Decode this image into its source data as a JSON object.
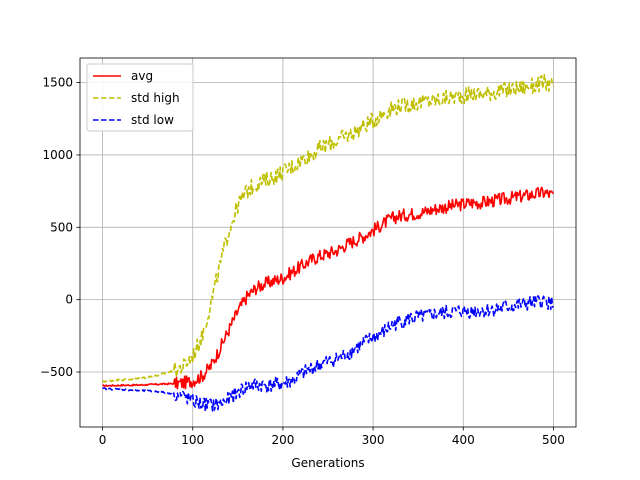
{
  "chart_data": {
    "type": "line",
    "title": "",
    "xlabel": "Generations",
    "ylabel": "",
    "xlim": [
      -25,
      525
    ],
    "ylim": [
      -880,
      1670
    ],
    "xticks": [
      0,
      100,
      200,
      300,
      400,
      500
    ],
    "yticks": [
      -500,
      0,
      500,
      1000,
      1500
    ],
    "ytick_labels": [
      "−500",
      "0",
      "500",
      "1000",
      "1500"
    ],
    "grid": true,
    "legend_position": "top-left",
    "noise": [
      [
        0,
        -1
      ],
      [
        1,
        -1
      ],
      [
        2,
        -1
      ],
      [
        3,
        0
      ],
      [
        4,
        0
      ],
      [
        5,
        1
      ],
      [
        6,
        1
      ],
      [
        7,
        1
      ]
    ],
    "series": [
      {
        "name": "avg",
        "color": "#ff0000",
        "dash": "solid",
        "x": [
          0,
          20,
          40,
          60,
          80,
          90,
          100,
          110,
          120,
          130,
          140,
          150,
          160,
          170,
          180,
          190,
          200,
          210,
          220,
          230,
          240,
          250,
          260,
          270,
          280,
          290,
          300,
          310,
          320,
          330,
          340,
          350,
          360,
          370,
          380,
          390,
          400,
          410,
          420,
          430,
          440,
          450,
          460,
          470,
          480,
          490,
          500
        ],
        "y": [
          -595,
          -592,
          -590,
          -585,
          -580,
          -575,
          -560,
          -530,
          -460,
          -340,
          -210,
          -80,
          20,
          80,
          110,
          130,
          150,
          190,
          230,
          270,
          300,
          320,
          340,
          380,
          410,
          440,
          480,
          520,
          560,
          580,
          590,
          600,
          610,
          630,
          640,
          650,
          660,
          670,
          670,
          680,
          690,
          700,
          710,
          720,
          730,
          740,
          720
        ],
        "amp": 45
      },
      {
        "name": "std high",
        "color": "#bfbf00",
        "dash": "dashed",
        "x": [
          0,
          20,
          40,
          60,
          80,
          90,
          100,
          110,
          120,
          130,
          140,
          150,
          160,
          170,
          180,
          190,
          200,
          210,
          220,
          230,
          240,
          250,
          260,
          270,
          280,
          290,
          300,
          310,
          320,
          330,
          340,
          350,
          360,
          370,
          380,
          390,
          400,
          410,
          420,
          430,
          440,
          450,
          460,
          470,
          480,
          490,
          500
        ],
        "y": [
          -565,
          -555,
          -545,
          -525,
          -490,
          -460,
          -390,
          -260,
          -30,
          230,
          480,
          650,
          750,
          800,
          820,
          850,
          880,
          920,
          960,
          1000,
          1040,
          1070,
          1100,
          1130,
          1160,
          1200,
          1240,
          1280,
          1320,
          1340,
          1350,
          1360,
          1370,
          1380,
          1390,
          1400,
          1410,
          1420,
          1420,
          1430,
          1440,
          1450,
          1460,
          1470,
          1480,
          1500,
          1480
        ],
        "amp": 55
      },
      {
        "name": "std low",
        "color": "#0000ff",
        "dash": "dashed",
        "x": [
          0,
          20,
          40,
          60,
          80,
          90,
          100,
          110,
          120,
          130,
          140,
          150,
          160,
          170,
          180,
          190,
          200,
          210,
          220,
          230,
          240,
          250,
          260,
          270,
          280,
          290,
          300,
          310,
          320,
          330,
          340,
          350,
          360,
          370,
          380,
          390,
          400,
          410,
          420,
          430,
          440,
          450,
          460,
          470,
          480,
          490,
          500
        ],
        "y": [
          -615,
          -620,
          -628,
          -635,
          -650,
          -670,
          -700,
          -720,
          -730,
          -720,
          -690,
          -640,
          -600,
          -590,
          -590,
          -590,
          -580,
          -560,
          -520,
          -480,
          -450,
          -430,
          -410,
          -380,
          -340,
          -300,
          -260,
          -230,
          -180,
          -150,
          -130,
          -120,
          -110,
          -100,
          -90,
          -80,
          -80,
          -80,
          -75,
          -70,
          -60,
          -50,
          -40,
          -30,
          -20,
          -10,
          -30
        ],
        "amp": 50
      }
    ]
  }
}
